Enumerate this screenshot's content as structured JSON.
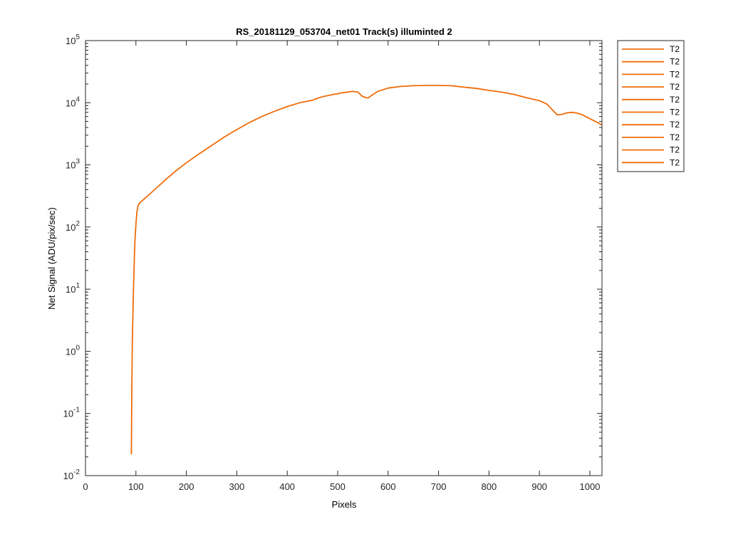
{
  "chart_data": {
    "type": "line",
    "title": "RS_20181129_053704_net01  Track(s) illuminted 2",
    "xlabel": "Pixels",
    "ylabel": "Net Signal (ADU/pix/sec)",
    "xlim": [
      0,
      1024
    ],
    "ylim": [
      0.01,
      100000
    ],
    "yscale": "log",
    "grid": false,
    "legend_position": "outside-right",
    "x_ticks": [
      0,
      100,
      200,
      300,
      400,
      500,
      600,
      700,
      800,
      900,
      1000
    ],
    "y_ticks": [
      {
        "value": 0.01,
        "base": "10",
        "exp": "-2"
      },
      {
        "value": 0.1,
        "base": "10",
        "exp": "-1"
      },
      {
        "value": 1,
        "base": "10",
        "exp": "0"
      },
      {
        "value": 10,
        "base": "10",
        "exp": "1"
      },
      {
        "value": 100,
        "base": "10",
        "exp": "2"
      },
      {
        "value": 1000,
        "base": "10",
        "exp": "3"
      },
      {
        "value": 10000,
        "base": "10",
        "exp": "4"
      },
      {
        "value": 100000,
        "base": "10",
        "exp": "5"
      }
    ],
    "series_color": "#EF6C0A",
    "legend_entries": [
      "T2",
      "T2",
      "T2",
      "T2",
      "T2",
      "T2",
      "T2",
      "T2",
      "T2",
      "T2"
    ],
    "series": [
      {
        "name": "T2",
        "x": [
          91,
          92,
          93,
          94,
          95,
          96,
          97,
          98,
          100,
          102,
          104,
          106,
          110,
          120,
          140,
          160,
          180,
          200,
          225,
          250,
          275,
          300,
          325,
          350,
          375,
          400,
          425,
          450,
          460,
          470,
          490,
          510,
          530,
          540,
          550,
          560,
          570,
          580,
          600,
          625,
          650,
          675,
          700,
          725,
          750,
          775,
          800,
          825,
          850,
          875,
          900,
          915,
          925,
          935,
          945,
          955,
          965,
          975,
          985,
          995,
          1005,
          1015,
          1024
        ],
        "y": [
          0.022,
          0.3,
          1.5,
          4,
          9,
          18,
          35,
          60,
          110,
          175,
          215,
          235,
          255,
          300,
          420,
          590,
          810,
          1080,
          1500,
          2050,
          2800,
          3700,
          4800,
          6000,
          7300,
          8700,
          10000,
          11000,
          11800,
          12500,
          13500,
          14500,
          15200,
          14800,
          12500,
          11900,
          13600,
          15300,
          17200,
          18300,
          18800,
          19000,
          19000,
          18800,
          17800,
          17000,
          15800,
          14800,
          13600,
          12000,
          10800,
          9500,
          7800,
          6400,
          6500,
          6900,
          7000,
          6800,
          6400,
          5800,
          5300,
          4800,
          4400
        ]
      }
    ]
  }
}
